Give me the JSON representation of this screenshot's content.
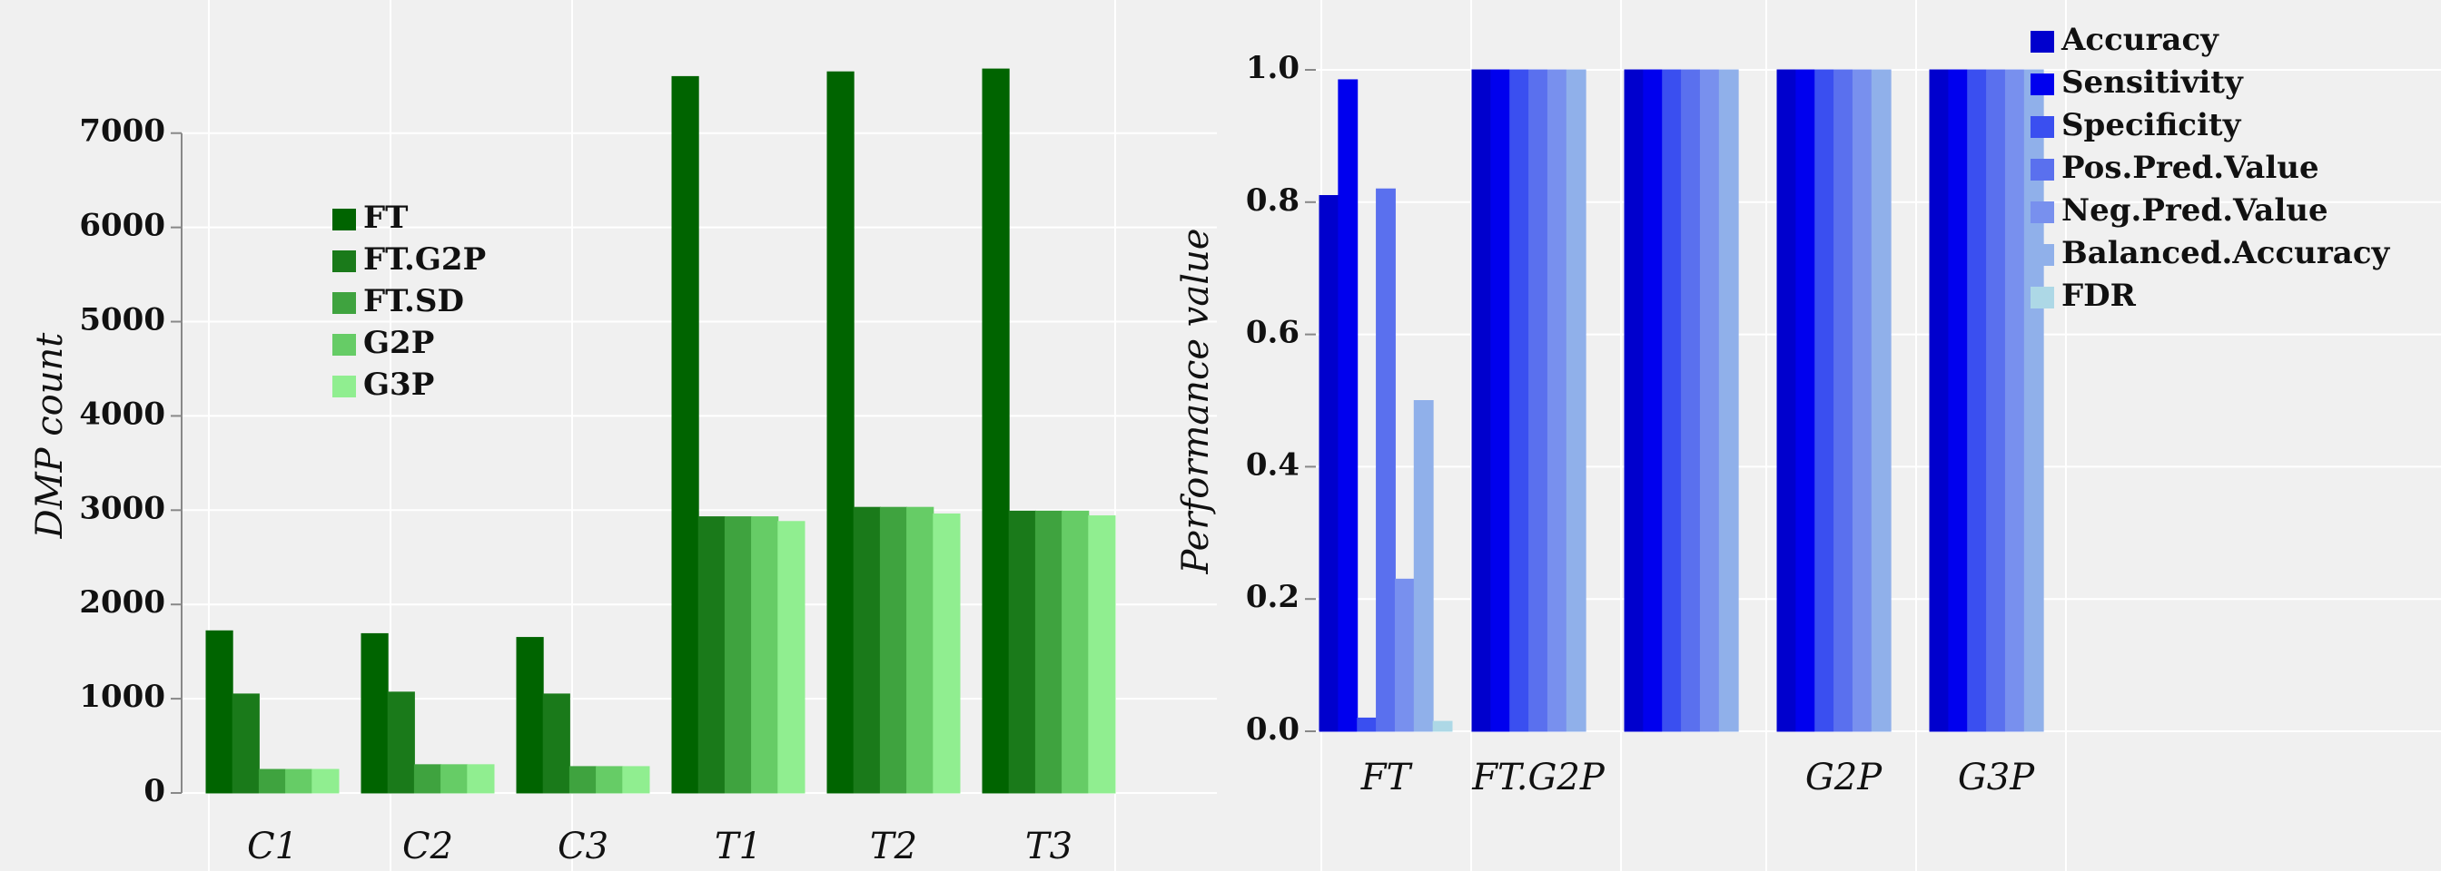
{
  "chart_data": [
    {
      "type": "bar",
      "y_label": "DMP count",
      "categories": [
        "C1",
        "C2",
        "C3",
        "T1",
        "T2",
        "T3"
      ],
      "series": [
        {
          "name": "FT",
          "color": "#006400",
          "values": [
            1720,
            1690,
            1650,
            7600,
            7650,
            7680
          ]
        },
        {
          "name": "FT.G2P",
          "color": "#1a7a1a",
          "values": [
            1050,
            1070,
            1050,
            2930,
            3030,
            2990
          ]
        },
        {
          "name": "FT.SD",
          "color": "#3fa33f",
          "values": [
            250,
            300,
            280,
            2930,
            3030,
            2990
          ]
        },
        {
          "name": "G2P",
          "color": "#66cc66",
          "values": [
            250,
            300,
            280,
            2930,
            3030,
            2990
          ]
        },
        {
          "name": "G3P",
          "color": "#90ee90",
          "values": [
            250,
            300,
            280,
            2880,
            2960,
            2940
          ]
        }
      ],
      "ylim": [
        0,
        7700
      ],
      "yticks": [
        0,
        1000,
        2000,
        3000,
        4000,
        5000,
        6000,
        7000
      ],
      "grid": true
    },
    {
      "type": "bar",
      "y_label": "Performance value",
      "categories": [
        "FT",
        "FT.G2P",
        null,
        "G2P",
        "G3P"
      ],
      "series": [
        {
          "name": "Accuracy",
          "color": "#0000cd",
          "values": [
            0.81,
            1.0,
            1.0,
            1.0,
            1.0
          ]
        },
        {
          "name": "Sensitivity",
          "color": "#0000ee",
          "values": [
            0.985,
            1.0,
            1.0,
            1.0,
            1.0
          ]
        },
        {
          "name": "Specificity",
          "color": "#3a4ff0",
          "values": [
            0.02,
            1.0,
            1.0,
            1.0,
            1.0
          ]
        },
        {
          "name": "Pos.Pred.Value",
          "color": "#5a70ee",
          "values": [
            0.82,
            1.0,
            1.0,
            1.0,
            1.0
          ]
        },
        {
          "name": "Neg.Pred.Value",
          "color": "#7890ee",
          "values": [
            0.23,
            1.0,
            1.0,
            1.0,
            1.0
          ]
        },
        {
          "name": "Balanced.Accuracy",
          "color": "#90b0ea",
          "values": [
            0.5,
            1.0,
            1.0,
            1.0,
            1.0
          ]
        },
        {
          "name": "FDR",
          "color": "#add8e6",
          "values": [
            0.015,
            0.0,
            0.0,
            0.0,
            0.0
          ]
        }
      ],
      "ylim": [
        0,
        1.0
      ],
      "yticks": [
        {
          "value": 0,
          "label": "0.0"
        },
        0.2,
        0.4,
        0.6,
        0.8,
        {
          "value": 1,
          "label": "1.0"
        }
      ],
      "grid": true
    }
  ]
}
